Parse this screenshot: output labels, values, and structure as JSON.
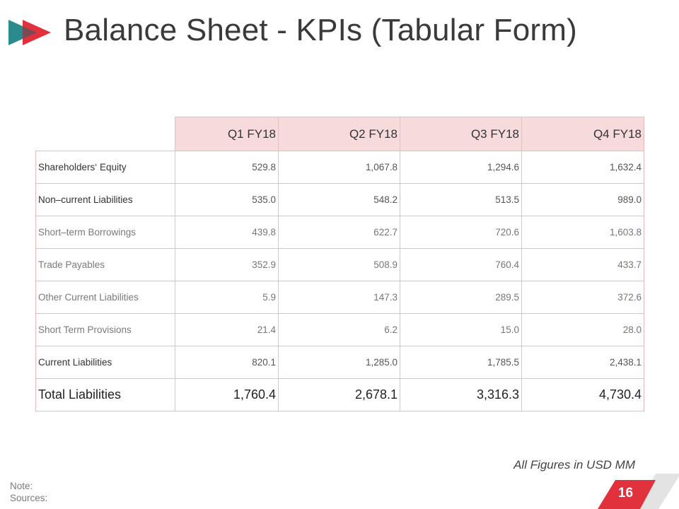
{
  "slide": {
    "title": "Balance Sheet - KPIs (Tabular Form)",
    "footnote": "All Figures in USD MM",
    "note_label": "Note:",
    "sources_label": "Sources:",
    "page_number": "16"
  },
  "colors": {
    "accent_red": "#e0313c",
    "accent_teal": "#2a8a8c",
    "header_fill": "#f7dadc",
    "grid_line": "#f0b9bd",
    "slash_gray": "#e3e3e3"
  },
  "table": {
    "columns": [
      "Q1 FY18",
      "Q2 FY18",
      "Q3 FY18",
      "Q4 FY18"
    ],
    "rows": [
      {
        "label": "Shareholders‘ Equity",
        "values": [
          "529.8",
          "1,067.8",
          "1,294.6",
          "1,632.4"
        ]
      },
      {
        "label": "Non–current Liabilities",
        "values": [
          "535.0",
          "548.2",
          "513.5",
          "989.0"
        ]
      },
      {
        "label": "Short–term Borrowings",
        "values": [
          "439.8",
          "622.7",
          "720.6",
          "1,603.8"
        ]
      },
      {
        "label": "Trade Payables",
        "values": [
          "352.9",
          "508.9",
          "760.4",
          "433.7"
        ]
      },
      {
        "label": "Other Current Liabilities",
        "values": [
          "5.9",
          "147.3",
          "289.5",
          "372.6"
        ]
      },
      {
        "label": "Short Term Provisions",
        "values": [
          "21.4",
          "6.2",
          "15.0",
          "28.0"
        ]
      },
      {
        "label": "Current Liabilities",
        "values": [
          "820.1",
          "1,285.0",
          "1,785.5",
          "2,438.1"
        ]
      },
      {
        "label": "Total Liabilities",
        "values": [
          "1,760.4",
          "2,678.1",
          "3,316.3",
          "4,730.4"
        ]
      }
    ]
  }
}
